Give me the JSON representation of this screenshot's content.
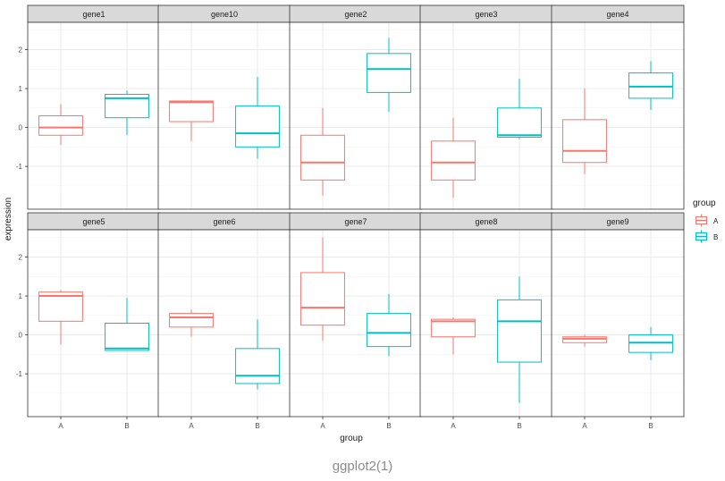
{
  "caption": "ggplot2(1)",
  "chart_data": {
    "type": "boxplot",
    "xlabel": "group",
    "ylabel": "expression",
    "ylim": [
      -2.1,
      2.7
    ],
    "y_ticks": [
      -1,
      0,
      1,
      2
    ],
    "x_ticks": [
      "A",
      "B"
    ],
    "grid": true,
    "theme": "bw",
    "legend": {
      "title": "group",
      "position": "right",
      "entries": [
        {
          "label": "A",
          "color": "#F8766D"
        },
        {
          "label": "B",
          "color": "#00BFC4"
        }
      ]
    },
    "facets": [
      {
        "panel": "gene1",
        "boxes": [
          {
            "group": "A",
            "whisker_low": -0.45,
            "q1": -0.2,
            "median": 0.0,
            "q3": 0.3,
            "whisker_high": 0.6
          },
          {
            "group": "B",
            "whisker_low": -0.2,
            "q1": 0.25,
            "median": 0.75,
            "q3": 0.85,
            "whisker_high": 0.95
          }
        ]
      },
      {
        "panel": "gene10",
        "boxes": [
          {
            "group": "A",
            "whisker_low": -0.35,
            "q1": 0.15,
            "median": 0.65,
            "q3": 0.68,
            "whisker_high": 0.7
          },
          {
            "group": "B",
            "whisker_low": -0.8,
            "q1": -0.5,
            "median": -0.15,
            "q3": 0.55,
            "whisker_high": 1.3
          }
        ]
      },
      {
        "panel": "gene2",
        "boxes": [
          {
            "group": "A",
            "whisker_low": -1.75,
            "q1": -1.35,
            "median": -0.9,
            "q3": -0.2,
            "whisker_high": 0.5
          },
          {
            "group": "B",
            "whisker_low": 0.4,
            "q1": 0.9,
            "median": 1.5,
            "q3": 1.9,
            "whisker_high": 2.3
          }
        ]
      },
      {
        "panel": "gene3",
        "boxes": [
          {
            "group": "A",
            "whisker_low": -1.8,
            "q1": -1.35,
            "median": -0.9,
            "q3": -0.35,
            "whisker_high": 0.25
          },
          {
            "group": "B",
            "whisker_low": -0.3,
            "q1": -0.25,
            "median": -0.2,
            "q3": 0.5,
            "whisker_high": 1.25
          }
        ]
      },
      {
        "panel": "gene4",
        "boxes": [
          {
            "group": "A",
            "whisker_low": -1.2,
            "q1": -0.9,
            "median": -0.6,
            "q3": 0.2,
            "whisker_high": 1.0
          },
          {
            "group": "B",
            "whisker_low": 0.45,
            "q1": 0.75,
            "median": 1.05,
            "q3": 1.4,
            "whisker_high": 1.7
          }
        ]
      },
      {
        "panel": "gene5",
        "boxes": [
          {
            "group": "A",
            "whisker_low": -0.25,
            "q1": 0.35,
            "median": 1.0,
            "q3": 1.1,
            "whisker_high": 1.15
          },
          {
            "group": "B",
            "whisker_low": -0.4,
            "q1": -0.4,
            "median": -0.35,
            "q3": 0.3,
            "whisker_high": 0.95
          }
        ]
      },
      {
        "panel": "gene6",
        "boxes": [
          {
            "group": "A",
            "whisker_low": -0.05,
            "q1": 0.2,
            "median": 0.45,
            "q3": 0.55,
            "whisker_high": 0.65
          },
          {
            "group": "B",
            "whisker_low": -1.4,
            "q1": -1.25,
            "median": -1.05,
            "q3": -0.35,
            "whisker_high": 0.4
          }
        ]
      },
      {
        "panel": "gene7",
        "boxes": [
          {
            "group": "A",
            "whisker_low": -0.15,
            "q1": 0.25,
            "median": 0.7,
            "q3": 1.6,
            "whisker_high": 2.5
          },
          {
            "group": "B",
            "whisker_low": -0.55,
            "q1": -0.3,
            "median": 0.05,
            "q3": 0.55,
            "whisker_high": 1.05
          }
        ]
      },
      {
        "panel": "gene8",
        "boxes": [
          {
            "group": "A",
            "whisker_low": -0.5,
            "q1": -0.05,
            "median": 0.35,
            "q3": 0.4,
            "whisker_high": 0.45
          },
          {
            "group": "B",
            "whisker_low": -1.75,
            "q1": -0.7,
            "median": 0.35,
            "q3": 0.9,
            "whisker_high": 1.5
          }
        ]
      },
      {
        "panel": "gene9",
        "boxes": [
          {
            "group": "A",
            "whisker_low": -0.3,
            "q1": -0.2,
            "median": -0.1,
            "q3": -0.05,
            "whisker_high": 0.0
          },
          {
            "group": "B",
            "whisker_low": -0.65,
            "q1": -0.45,
            "median": -0.2,
            "q3": 0.0,
            "whisker_high": 0.2
          }
        ]
      }
    ]
  }
}
